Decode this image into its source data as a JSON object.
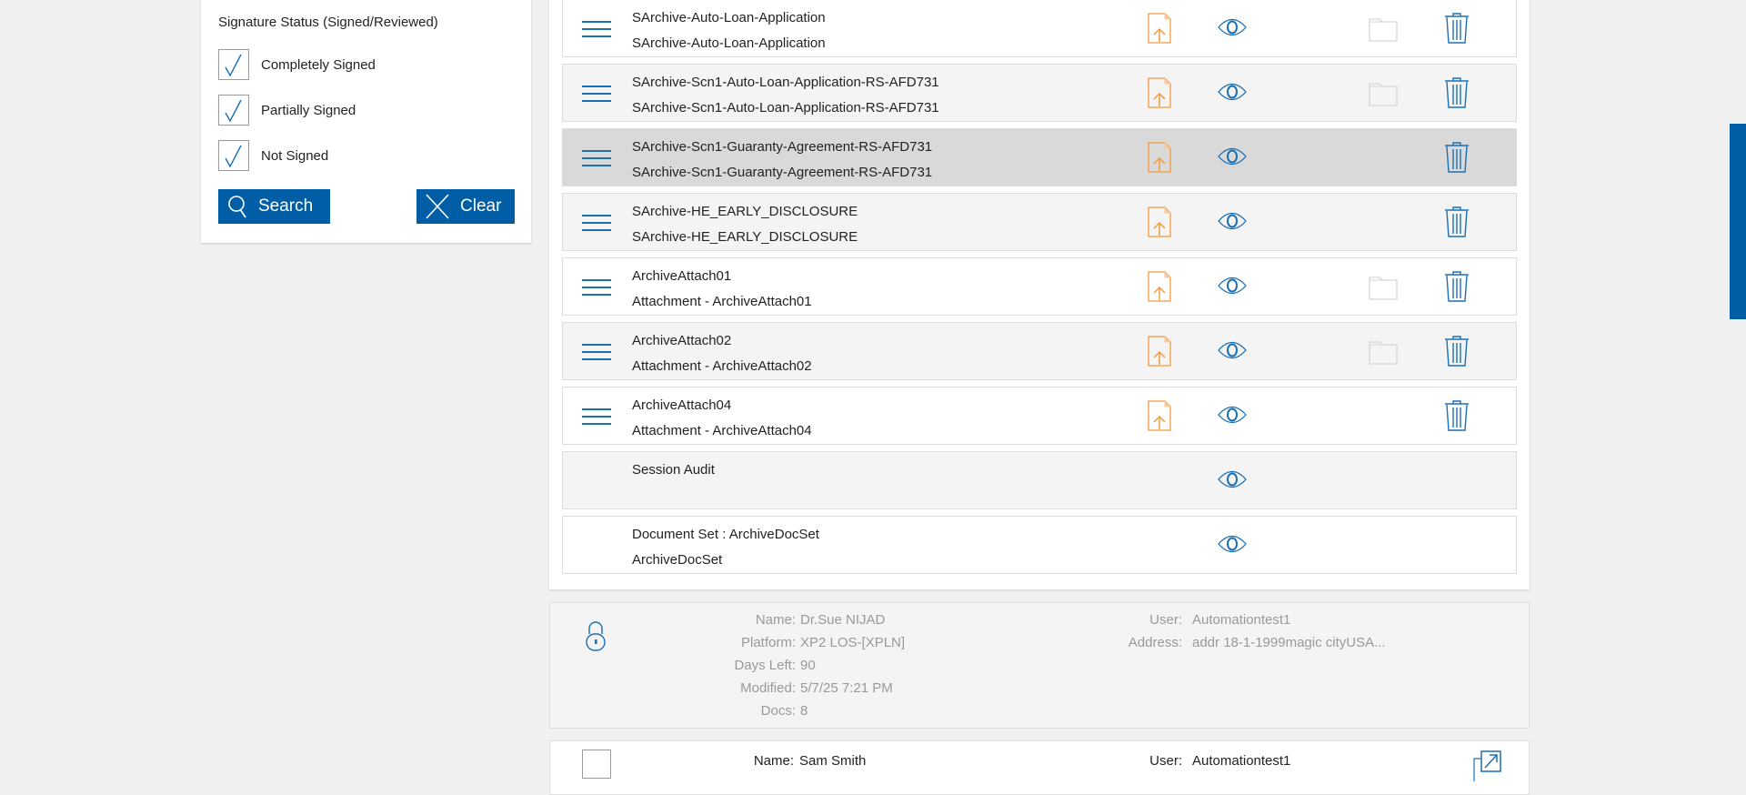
{
  "filter": {
    "title": "Signature Status (Signed/Reviewed)",
    "options": [
      {
        "label": "Completely Signed",
        "checked": true
      },
      {
        "label": "Partially Signed",
        "checked": true
      },
      {
        "label": "Not Signed",
        "checked": true
      }
    ],
    "search_label": "Search",
    "clear_label": "Clear"
  },
  "colors": {
    "accent": "#005ea6",
    "upload": "#f39a3a",
    "selected_row": "#d9d9d9"
  },
  "documents": [
    {
      "line1": "SArchive-Auto-Loan-Application",
      "line2": "SArchive-Auto-Loan-Application",
      "menu": true,
      "upload": true,
      "folder": true,
      "trash": true
    },
    {
      "line1": "SArchive-Scn1-Auto-Loan-Application-RS-AFD731",
      "line2": "SArchive-Scn1-Auto-Loan-Application-RS-AFD731",
      "menu": true,
      "upload": true,
      "folder": true,
      "trash": true
    },
    {
      "line1": "SArchive-Scn1-Guaranty-Agreement-RS-AFD731",
      "line2": "SArchive-Scn1-Guaranty-Agreement-RS-AFD731",
      "menu": true,
      "upload": true,
      "folder": false,
      "trash": true,
      "selected": true
    },
    {
      "line1": "SArchive-HE_EARLY_DISCLOSURE",
      "line2": "SArchive-HE_EARLY_DISCLOSURE",
      "menu": true,
      "upload": true,
      "folder": false,
      "trash": true
    },
    {
      "line1": "ArchiveAttach01",
      "line2": "Attachment - ArchiveAttach01",
      "menu": true,
      "upload": true,
      "folder": true,
      "trash": true
    },
    {
      "line1": "ArchiveAttach02",
      "line2": "Attachment - ArchiveAttach02",
      "menu": true,
      "upload": true,
      "folder": true,
      "trash": true
    },
    {
      "line1": "ArchiveAttach04",
      "line2": "Attachment - ArchiveAttach04",
      "menu": true,
      "upload": true,
      "folder": false,
      "trash": true
    },
    {
      "line1": "Session Audit",
      "line2": "",
      "menu": false,
      "upload": false,
      "folder": false,
      "trash": false
    },
    {
      "line1": "Document Set : ArchiveDocSet",
      "line2": "ArchiveDocSet",
      "menu": false,
      "upload": false,
      "folder": false,
      "trash": false
    }
  ],
  "package": {
    "locked": true,
    "left": [
      {
        "label": "Name:",
        "value": "Dr.Sue NIJAD"
      },
      {
        "label": "Platform:",
        "value": "XP2 LOS-[XPLN]"
      },
      {
        "label": "Days Left:",
        "value": "90"
      },
      {
        "label": "Modified:",
        "value": "5/7/25 7:21 PM"
      },
      {
        "label": "Docs:",
        "value": "8"
      }
    ],
    "right": [
      {
        "label": "User:",
        "value": "Automationtest1"
      },
      {
        "label": "Address:",
        "value": "addr 18-1-1999magic cityUSA..."
      }
    ]
  },
  "next_package": {
    "name_label": "Name:",
    "name": "Sam Smith",
    "user_label": "User:",
    "user": "Automationtest1"
  }
}
